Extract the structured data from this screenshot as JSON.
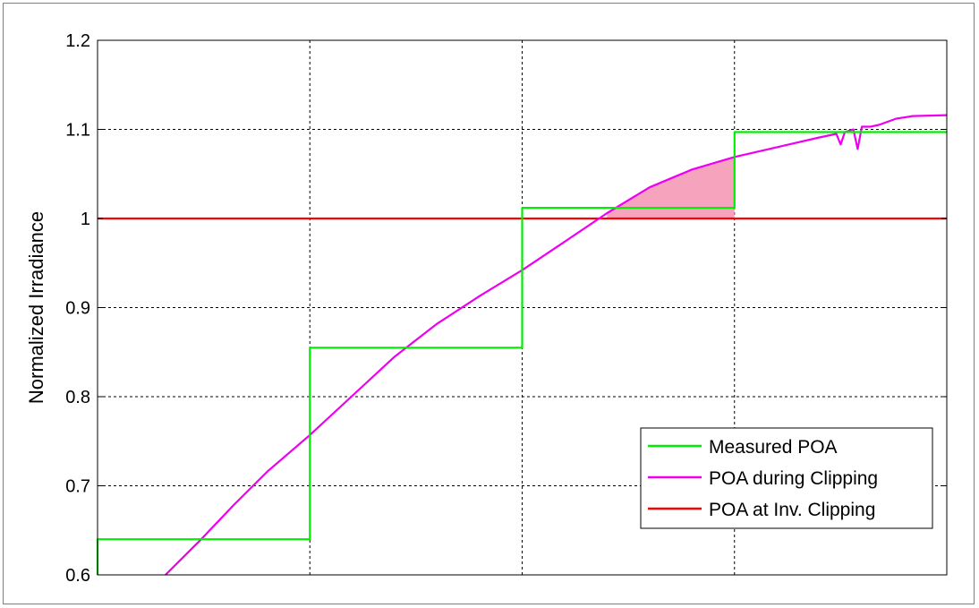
{
  "chart_data": {
    "type": "line",
    "title": "",
    "xlabel": "",
    "ylabel": "Normalized Irradiance",
    "ylim": [
      0.6,
      1.2
    ],
    "xlim": [
      0,
      1
    ],
    "yticks": [
      "0.6",
      "0.7",
      "0.8",
      "0.9",
      "1",
      "1.1",
      "1.2"
    ],
    "grid": true,
    "legend_position": "lower-right",
    "series": [
      {
        "name": "Measured POA",
        "color": "#00ee00",
        "step": true,
        "x": [
          0,
          0,
          0.25,
          0.25,
          0.5,
          0.5,
          0.75,
          0.75,
          1.0
        ],
        "y": [
          0.6,
          0.64,
          0.64,
          0.855,
          0.855,
          1.012,
          1.012,
          1.097,
          1.097
        ]
      },
      {
        "name": "POA during Clipping",
        "color": "#ee00ee",
        "x": [
          0.08,
          0.12,
          0.16,
          0.2,
          0.25,
          0.3,
          0.35,
          0.4,
          0.45,
          0.5,
          0.55,
          0.6,
          0.65,
          0.7,
          0.75,
          0.8,
          0.85,
          0.87,
          0.875,
          0.88,
          0.89,
          0.895,
          0.9,
          0.91,
          0.92,
          0.94,
          0.96,
          1.0
        ],
        "y": [
          0.6,
          0.638,
          0.678,
          0.716,
          0.757,
          0.801,
          0.845,
          0.882,
          0.913,
          0.942,
          0.974,
          1.006,
          1.035,
          1.055,
          1.069,
          1.08,
          1.091,
          1.095,
          1.083,
          1.097,
          1.1,
          1.078,
          1.103,
          1.103,
          1.105,
          1.112,
          1.115,
          1.116
        ]
      },
      {
        "name": "POA at Inv. Clipping",
        "color": "#ff0000",
        "x": [
          0,
          1
        ],
        "y": [
          1.0,
          1.0
        ]
      }
    ],
    "shaded_region": {
      "between": [
        "POA during Clipping",
        "POA at Inv. Clipping"
      ],
      "x_range": [
        0.6,
        0.75
      ],
      "color": "#f6a3bd"
    }
  }
}
